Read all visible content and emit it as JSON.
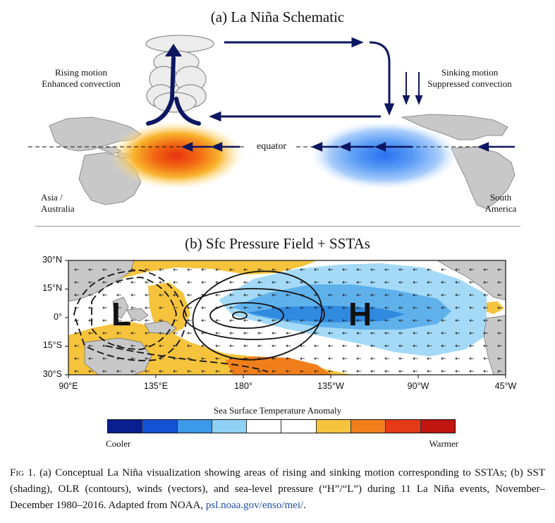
{
  "panel_a": {
    "title": "(a) La Niña Schematic",
    "rising_line1": "Rising motion",
    "rising_line2": "Enhanced convection",
    "sinking_line1": "Sinking motion",
    "sinking_line2": "Suppressed convection",
    "equator_label": "equator",
    "asia_line1": "Asia /",
    "asia_line2": "Australia",
    "sa_line1": "South",
    "sa_line2": "America"
  },
  "panel_b": {
    "title": "(b) Sfc Pressure Field + SSTAs",
    "low_label": "L",
    "high_label": "H",
    "y_ticks": [
      "30°N",
      "15°N",
      "0°",
      "15°S",
      "30°S"
    ],
    "x_ticks": [
      "90°E",
      "135°E",
      "180°",
      "135°W",
      "90°W",
      "45°W"
    ]
  },
  "colorbar": {
    "title": "Sea Surface Temperature Anomaly",
    "cool_label": "Cooler",
    "warm_label": "Warmer",
    "colors": [
      "#0a1f8f",
      "#1452d6",
      "#3d9ae8",
      "#8fd0f5",
      "#ffffff",
      "#ffffff",
      "#f6c33c",
      "#f07f1b",
      "#e53a17",
      "#c0160f"
    ]
  },
  "caption": {
    "fig_label": "Fig",
    "text": " 1. (a) Conceptual La Niña visualization showing areas of rising and sinking motion corresponding to SSTAs; (b) SST (shading), OLR (contours), winds (vectors), and sea-level pressure (“H”/“L”) during 11 La Niña events, November–December 1980–2016. Adapted from NOAA, ",
    "link": "psl.noaa.gov/enso/mei/",
    "end": "."
  }
}
